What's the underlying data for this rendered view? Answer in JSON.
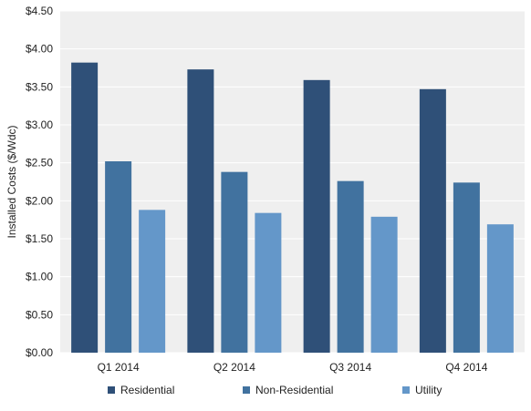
{
  "chart_data": {
    "type": "bar",
    "ylabel": "Installed Costs ($/Wdc)",
    "categories": [
      "Q1 2014",
      "Q2 2014",
      "Q3 2014",
      "Q4 2014"
    ],
    "series": [
      {
        "name": "Residential",
        "color": "#2f5078",
        "values": [
          3.82,
          3.73,
          3.59,
          3.47
        ]
      },
      {
        "name": "Non-Residential",
        "color": "#41729f",
        "values": [
          2.52,
          2.38,
          2.26,
          2.24
        ]
      },
      {
        "name": "Utility",
        "color": "#6497c9",
        "values": [
          1.88,
          1.84,
          1.79,
          1.69
        ]
      }
    ],
    "ylim": [
      0,
      4.5
    ],
    "yticks": [
      "$0.00",
      "$0.50",
      "$1.00",
      "$1.50",
      "$2.00",
      "$2.50",
      "$3.00",
      "$3.50",
      "$4.00",
      "$4.50"
    ],
    "grid": true,
    "legend_position": "bottom",
    "plot_background": "#efefef"
  }
}
